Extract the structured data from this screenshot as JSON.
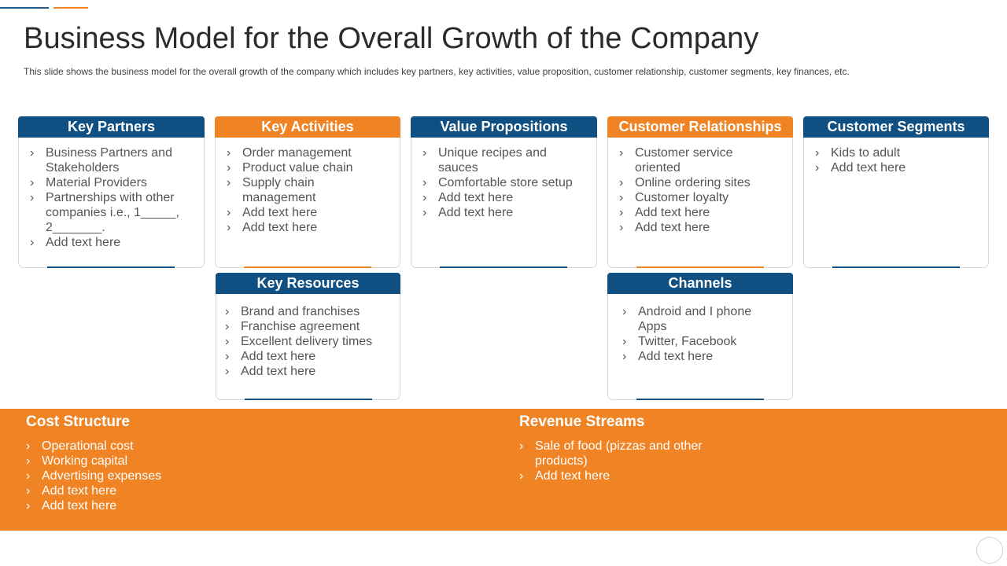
{
  "header": {
    "title": "Business Model for the Overall Growth of the Company",
    "subtitle": "This slide shows the business model for the overall  growth of the company which includes key partners, key activities, value  proposition, customer relationship,  customer segments, key finances,  etc."
  },
  "colors": {
    "blue": "#0f4f82",
    "orange": "#f08323"
  },
  "cards": {
    "key_partners": {
      "title": "Key Partners",
      "items": [
        "Business Partners and Stakeholders",
        "Material Providers",
        "Partnerships with other companies i.e., 1_____, 2_______.",
        "Add text here"
      ]
    },
    "key_activities": {
      "title": "Key Activities",
      "items": [
        "Order management",
        "Product value chain",
        "Supply chain management",
        "Add text here",
        "Add text here"
      ]
    },
    "value_propositions": {
      "title": "Value Propositions",
      "items": [
        "Unique recipes and sauces",
        "Comfortable store setup",
        "Add text here",
        "Add text here"
      ]
    },
    "customer_relationships": {
      "title": "Customer Relationships",
      "items": [
        "Customer service oriented",
        "Online ordering sites",
        "Customer loyalty",
        "Add text here",
        "Add text here"
      ]
    },
    "customer_segments": {
      "title": "Customer Segments",
      "items": [
        "Kids to adult",
        "Add text here"
      ]
    },
    "key_resources": {
      "title": "Key Resources",
      "items": [
        "Brand and franchises",
        "Franchise agreement",
        "Excellent delivery times",
        "Add text here",
        "Add text here"
      ]
    },
    "channels": {
      "title": "Channels",
      "items": [
        "Android and I phone Apps",
        "Twitter, Facebook",
        "Add text here"
      ]
    }
  },
  "cost_structure": {
    "title": "Cost Structure",
    "items": [
      "Operational cost",
      "Working capital",
      "Advertising expenses",
      "Add text here",
      "Add text here"
    ]
  },
  "revenue_streams": {
    "title": "Revenue Streams",
    "items": [
      "Sale of food (pizzas and other products)",
      "Add text here"
    ]
  }
}
